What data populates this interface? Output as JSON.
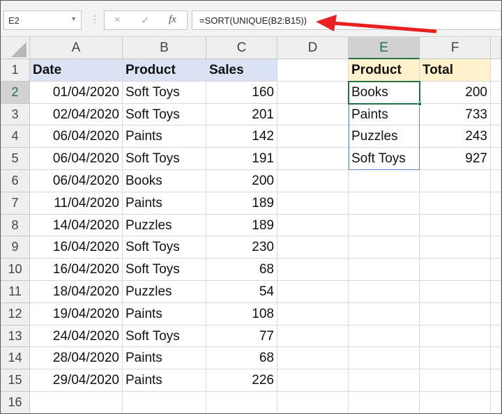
{
  "name_box": "E2",
  "icons": {
    "cancel": "×",
    "enter": "✓",
    "fx": "fx"
  },
  "formula": "=SORT(UNIQUE(B2:B15))",
  "columns": [
    "A",
    "B",
    "C",
    "D",
    "E",
    "F"
  ],
  "rows": [
    "1",
    "2",
    "3",
    "4",
    "5",
    "6",
    "7",
    "8",
    "9",
    "10",
    "11",
    "12",
    "13",
    "14",
    "15",
    "16"
  ],
  "headers": {
    "date": "Date",
    "product": "Product",
    "sales": "Sales",
    "result_product": "Product",
    "result_total": "Total"
  },
  "data": [
    [
      "01/04/2020",
      "Soft Toys",
      "160"
    ],
    [
      "02/04/2020",
      "Soft Toys",
      "201"
    ],
    [
      "06/04/2020",
      "Paints",
      "142"
    ],
    [
      "06/04/2020",
      "Soft Toys",
      "191"
    ],
    [
      "06/04/2020",
      "Books",
      "200"
    ],
    [
      "11/04/2020",
      "Paints",
      "189"
    ],
    [
      "14/04/2020",
      "Puzzles",
      "189"
    ],
    [
      "16/04/2020",
      "Soft Toys",
      "230"
    ],
    [
      "16/04/2020",
      "Soft Toys",
      "68"
    ],
    [
      "18/04/2020",
      "Puzzles",
      "54"
    ],
    [
      "19/04/2020",
      "Paints",
      "108"
    ],
    [
      "24/04/2020",
      "Soft Toys",
      "77"
    ],
    [
      "28/04/2020",
      "Paints",
      "68"
    ],
    [
      "29/04/2020",
      "Paints",
      "226"
    ]
  ],
  "results": [
    [
      "Books",
      "200"
    ],
    [
      "Paints",
      "733"
    ],
    [
      "Puzzles",
      "243"
    ],
    [
      "Soft Toys",
      "927"
    ]
  ],
  "colors": {
    "arrow": "#e8201f",
    "selection": "#217346",
    "spill": "#5b8bd6"
  }
}
